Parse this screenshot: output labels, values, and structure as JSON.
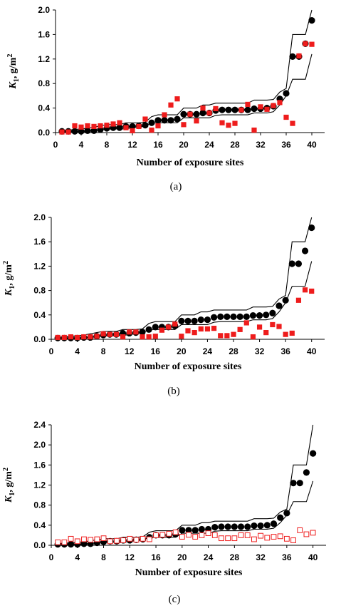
{
  "chart_data": [
    {
      "type": "scatter",
      "caption": "(a)",
      "xlabel": "Number of exposure sites",
      "ylabel": "K1, g/m2",
      "xlim": [
        0,
        42
      ],
      "ylim": [
        0,
        2.0
      ],
      "xticks": [
        0,
        4,
        8,
        12,
        16,
        20,
        24,
        28,
        32,
        36,
        40
      ],
      "yticks": [
        0.0,
        0.4,
        0.8,
        1.2,
        1.6,
        2.0
      ],
      "ytick_labels": [
        "0.0",
        "0.4",
        "0.8",
        "1.2",
        "1.6",
        "2.0"
      ],
      "band": {
        "upper": [
          0.03,
          0.04,
          0.05,
          0.06,
          0.07,
          0.09,
          0.11,
          0.13,
          0.13,
          0.13,
          0.16,
          0.16,
          0.16,
          0.17,
          0.26,
          0.29,
          0.29,
          0.29,
          0.29,
          0.4,
          0.4,
          0.4,
          0.45,
          0.45,
          0.48,
          0.48,
          0.48,
          0.48,
          0.48,
          0.48,
          0.53,
          0.53,
          0.53,
          0.54,
          0.66,
          0.72,
          1.6,
          1.6,
          1.6,
          2.0
        ],
        "lower": [
          0.01,
          0.01,
          0.01,
          0.01,
          0.02,
          0.04,
          0.05,
          0.06,
          0.06,
          0.06,
          0.06,
          0.08,
          0.09,
          0.11,
          0.16,
          0.16,
          0.16,
          0.16,
          0.16,
          0.24,
          0.24,
          0.24,
          0.24,
          0.24,
          0.28,
          0.29,
          0.29,
          0.29,
          0.29,
          0.29,
          0.32,
          0.32,
          0.32,
          0.34,
          0.45,
          0.6,
          0.87,
          0.87,
          0.87,
          1.28
        ]
      },
      "series": [
        {
          "marker": "filled-circle",
          "color": "#000000",
          "x": [
            1,
            2,
            3,
            4,
            5,
            6,
            7,
            8,
            9,
            10,
            11,
            12,
            13,
            14,
            15,
            16,
            17,
            18,
            19,
            20,
            21,
            22,
            23,
            24,
            25,
            26,
            27,
            28,
            29,
            30,
            31,
            32,
            33,
            34,
            35,
            36,
            37,
            38,
            39,
            40
          ],
          "y": [
            0.02,
            0.02,
            0.02,
            0.02,
            0.03,
            0.03,
            0.05,
            0.07,
            0.08,
            0.08,
            0.1,
            0.1,
            0.11,
            0.12,
            0.16,
            0.2,
            0.2,
            0.2,
            0.22,
            0.3,
            0.3,
            0.3,
            0.32,
            0.32,
            0.36,
            0.37,
            0.37,
            0.37,
            0.37,
            0.37,
            0.39,
            0.39,
            0.4,
            0.43,
            0.55,
            0.64,
            1.24,
            1.24,
            1.45,
            1.83
          ]
        },
        {
          "marker": "filled-square",
          "color": "#ee1c1c",
          "x": [
            1,
            2,
            3,
            4,
            5,
            6,
            7,
            8,
            9,
            10,
            11,
            12,
            13,
            14,
            15,
            16,
            17,
            18,
            19,
            20,
            21,
            22,
            23,
            24,
            25,
            26,
            27,
            28,
            29,
            30,
            31,
            32,
            33,
            34,
            35,
            36,
            37,
            38,
            39,
            40
          ],
          "y": [
            0.01,
            0.01,
            0.11,
            0.09,
            0.11,
            0.1,
            0.11,
            0.12,
            0.14,
            0.16,
            0.08,
            0.03,
            0.1,
            0.22,
            0.04,
            0.11,
            0.29,
            0.45,
            0.55,
            0.13,
            0.3,
            0.19,
            0.4,
            0.32,
            0.39,
            0.16,
            0.12,
            0.15,
            0.37,
            0.46,
            0.04,
            0.42,
            0.38,
            0.44,
            0.49,
            0.25,
            0.15,
            1.25,
            1.45,
            1.44
          ]
        }
      ]
    },
    {
      "type": "scatter",
      "caption": "(b)",
      "xlabel": "Number of exposure sites",
      "ylabel": "K1, g/m2",
      "xlim": [
        0,
        42
      ],
      "ylim": [
        0,
        2.0
      ],
      "xticks": [
        0,
        4,
        8,
        12,
        16,
        20,
        24,
        28,
        32,
        36,
        40
      ],
      "yticks": [
        0.0,
        0.4,
        0.8,
        1.2,
        1.6,
        2.0
      ],
      "ytick_labels": [
        "0.0",
        "0.4",
        "0.8",
        "1.2",
        "1.6",
        "2.0"
      ],
      "band": {
        "upper": [
          0.03,
          0.04,
          0.05,
          0.06,
          0.07,
          0.09,
          0.11,
          0.13,
          0.13,
          0.13,
          0.16,
          0.16,
          0.16,
          0.17,
          0.26,
          0.29,
          0.29,
          0.29,
          0.29,
          0.4,
          0.4,
          0.4,
          0.45,
          0.45,
          0.48,
          0.48,
          0.48,
          0.48,
          0.48,
          0.48,
          0.53,
          0.53,
          0.53,
          0.54,
          0.66,
          0.72,
          1.6,
          1.6,
          1.6,
          2.0
        ],
        "lower": [
          0.01,
          0.01,
          0.01,
          0.01,
          0.02,
          0.04,
          0.05,
          0.06,
          0.06,
          0.06,
          0.06,
          0.08,
          0.09,
          0.11,
          0.16,
          0.16,
          0.16,
          0.16,
          0.16,
          0.24,
          0.24,
          0.24,
          0.24,
          0.24,
          0.28,
          0.29,
          0.29,
          0.29,
          0.29,
          0.29,
          0.32,
          0.32,
          0.32,
          0.34,
          0.45,
          0.6,
          0.87,
          0.87,
          0.87,
          1.28
        ]
      },
      "series": [
        {
          "marker": "filled-circle",
          "color": "#000000",
          "x": [
            1,
            2,
            3,
            4,
            5,
            6,
            7,
            8,
            9,
            10,
            11,
            12,
            13,
            14,
            15,
            16,
            17,
            18,
            19,
            20,
            21,
            22,
            23,
            24,
            25,
            26,
            27,
            28,
            29,
            30,
            31,
            32,
            33,
            34,
            35,
            36,
            37,
            38,
            39,
            40
          ],
          "y": [
            0.02,
            0.02,
            0.02,
            0.02,
            0.03,
            0.03,
            0.05,
            0.07,
            0.08,
            0.08,
            0.1,
            0.1,
            0.11,
            0.12,
            0.16,
            0.2,
            0.2,
            0.2,
            0.22,
            0.3,
            0.3,
            0.3,
            0.32,
            0.32,
            0.36,
            0.37,
            0.37,
            0.37,
            0.37,
            0.37,
            0.39,
            0.39,
            0.4,
            0.43,
            0.55,
            0.64,
            1.24,
            1.24,
            1.45,
            1.83
          ]
        },
        {
          "marker": "filled-square",
          "color": "#ee1c1c",
          "x": [
            1,
            2,
            3,
            4,
            5,
            6,
            7,
            8,
            9,
            10,
            11,
            12,
            13,
            14,
            15,
            16,
            17,
            18,
            19,
            20,
            21,
            22,
            23,
            24,
            25,
            26,
            27,
            28,
            29,
            30,
            31,
            32,
            33,
            34,
            35,
            36,
            37,
            38,
            39,
            40
          ],
          "y": [
            0.03,
            0.03,
            0.04,
            0.03,
            0.04,
            0.04,
            0.05,
            0.09,
            0.08,
            0.08,
            0.04,
            0.12,
            0.12,
            0.04,
            0.04,
            0.05,
            0.15,
            0.2,
            0.25,
            0.05,
            0.14,
            0.11,
            0.17,
            0.17,
            0.18,
            0.06,
            0.06,
            0.08,
            0.16,
            0.27,
            0.04,
            0.2,
            0.11,
            0.24,
            0.21,
            0.08,
            0.1,
            0.64,
            0.81,
            0.79
          ]
        }
      ]
    },
    {
      "type": "scatter",
      "caption": "(c)",
      "xlabel": "Number of exposure sites",
      "ylabel": "K1, g/m2",
      "xlim": [
        0,
        42
      ],
      "ylim": [
        0,
        2.4
      ],
      "xticks": [
        0,
        4,
        8,
        12,
        16,
        20,
        24,
        28,
        32,
        36,
        40
      ],
      "yticks": [
        0.0,
        0.4,
        0.8,
        1.2,
        1.6,
        2.0,
        2.4
      ],
      "ytick_labels": [
        "0.0",
        "0.4",
        "0.8",
        "1.2",
        "1.6",
        "2.0",
        "2.4"
      ],
      "band": {
        "upper": [
          0.03,
          0.04,
          0.05,
          0.06,
          0.07,
          0.09,
          0.11,
          0.13,
          0.13,
          0.13,
          0.16,
          0.16,
          0.16,
          0.17,
          0.26,
          0.29,
          0.29,
          0.29,
          0.29,
          0.4,
          0.4,
          0.4,
          0.45,
          0.45,
          0.48,
          0.48,
          0.48,
          0.48,
          0.48,
          0.48,
          0.53,
          0.53,
          0.53,
          0.54,
          0.66,
          0.72,
          1.6,
          1.6,
          1.6,
          2.4
        ],
        "lower": [
          0.01,
          0.01,
          0.01,
          0.01,
          0.02,
          0.04,
          0.05,
          0.06,
          0.06,
          0.06,
          0.06,
          0.08,
          0.09,
          0.11,
          0.16,
          0.16,
          0.16,
          0.16,
          0.16,
          0.24,
          0.24,
          0.24,
          0.24,
          0.24,
          0.28,
          0.29,
          0.29,
          0.29,
          0.29,
          0.29,
          0.32,
          0.32,
          0.32,
          0.34,
          0.45,
          0.6,
          0.87,
          0.87,
          0.87,
          1.28
        ]
      },
      "series": [
        {
          "marker": "filled-circle",
          "color": "#000000",
          "x": [
            1,
            2,
            3,
            4,
            5,
            6,
            7,
            8,
            9,
            10,
            11,
            12,
            13,
            14,
            15,
            16,
            17,
            18,
            19,
            20,
            21,
            22,
            23,
            24,
            25,
            26,
            27,
            28,
            29,
            30,
            31,
            32,
            33,
            34,
            35,
            36,
            37,
            38,
            39,
            40
          ],
          "y": [
            0.02,
            0.02,
            0.02,
            0.02,
            0.03,
            0.03,
            0.05,
            0.07,
            0.08,
            0.08,
            0.1,
            0.1,
            0.11,
            0.12,
            0.16,
            0.2,
            0.2,
            0.2,
            0.22,
            0.3,
            0.3,
            0.3,
            0.32,
            0.32,
            0.36,
            0.37,
            0.37,
            0.37,
            0.37,
            0.37,
            0.39,
            0.39,
            0.4,
            0.43,
            0.55,
            0.64,
            1.24,
            1.24,
            1.45,
            1.83
          ]
        },
        {
          "marker": "open-square",
          "color": "#ee1c1c",
          "x": [
            1,
            2,
            3,
            4,
            5,
            6,
            7,
            8,
            9,
            10,
            11,
            12,
            13,
            14,
            15,
            16,
            17,
            18,
            19,
            20,
            21,
            22,
            23,
            24,
            25,
            26,
            27,
            28,
            29,
            30,
            31,
            32,
            33,
            34,
            35,
            36,
            37,
            38,
            39,
            40
          ],
          "y": [
            0.06,
            0.06,
            0.13,
            0.08,
            0.12,
            0.11,
            0.12,
            0.14,
            0.08,
            0.09,
            0.1,
            0.13,
            0.11,
            0.13,
            0.12,
            0.2,
            0.21,
            0.23,
            0.26,
            0.17,
            0.21,
            0.17,
            0.2,
            0.24,
            0.2,
            0.14,
            0.14,
            0.14,
            0.2,
            0.2,
            0.12,
            0.19,
            0.15,
            0.17,
            0.18,
            0.13,
            0.1,
            0.3,
            0.22,
            0.25
          ]
        }
      ]
    }
  ]
}
